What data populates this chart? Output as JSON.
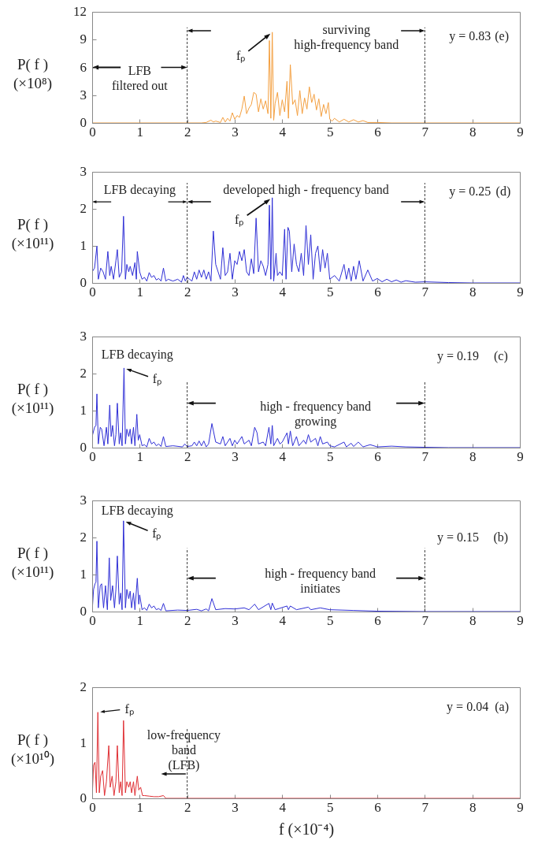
{
  "chart_data": [
    {
      "type": "line",
      "ylabel": "P( f )\n(×10⁸)",
      "xlim": [
        0,
        9
      ],
      "xticks": [
        0,
        1,
        2,
        3,
        4,
        5,
        6,
        7,
        8,
        9
      ],
      "ylim": [
        0,
        12
      ],
      "yticks": [
        0,
        3,
        6,
        9,
        12
      ],
      "series": [
        {
          "color": "#f4a041",
          "x": [
            0,
            2.3,
            2.4,
            2.5,
            2.55,
            2.6,
            2.7,
            2.75,
            2.8,
            2.85,
            2.9,
            2.95,
            3.0,
            3.05,
            3.1,
            3.15,
            3.2,
            3.25,
            3.3,
            3.35,
            3.4,
            3.45,
            3.5,
            3.55,
            3.6,
            3.65,
            3.7,
            3.73,
            3.76,
            3.79,
            3.82,
            3.85,
            3.9,
            3.95,
            4.0,
            4.05,
            4.1,
            4.13,
            4.17,
            4.22,
            4.27,
            4.32,
            4.37,
            4.42,
            4.47,
            4.52,
            4.57,
            4.62,
            4.67,
            4.72,
            4.77,
            4.82,
            4.87,
            4.92,
            4.97,
            5.0,
            5.05,
            5.1,
            5.2,
            5.3,
            5.4,
            5.5,
            5.6,
            5.7,
            5.8,
            6.0,
            6.3,
            9
          ],
          "values": [
            0,
            0,
            0.05,
            0.3,
            0.1,
            0.2,
            0.05,
            0.6,
            0.1,
            0.5,
            0.2,
            1.1,
            0.4,
            0.8,
            0.6,
            1.5,
            2.9,
            1.0,
            1.6,
            2.0,
            3.3,
            3.1,
            1.2,
            2.6,
            1.5,
            2.4,
            1.0,
            8.9,
            0.5,
            9.8,
            0.3,
            2.1,
            3.3,
            0.8,
            2.5,
            1.2,
            4.5,
            0.5,
            6.3,
            2.0,
            2.5,
            0.8,
            3.5,
            1.0,
            2.7,
            1.5,
            3.9,
            2.2,
            3.1,
            1.4,
            2.6,
            0.7,
            2.0,
            1.0,
            2.2,
            0.4,
            0.2,
            0.5,
            0.1,
            0.4,
            0.1,
            0.35,
            0.1,
            0.25,
            0.05,
            0.05,
            0,
            0
          ]
        }
      ],
      "ref_lines": [
        {
          "axis": "x",
          "value": 2,
          "line_style": "dashed"
        },
        {
          "axis": "x",
          "value": 7,
          "line_style": "dashed"
        }
      ],
      "annotations": [
        "LFB\nfiltered out",
        "surviving\nhigh-frequency band",
        {
          "text": "fₚ",
          "x": 3.79,
          "y": 9.8
        },
        "y = 0.83",
        "(e)"
      ]
    },
    {
      "type": "line",
      "ylabel": "P( f )\n(×10¹¹)",
      "xlim": [
        0,
        9
      ],
      "xticks": [
        0,
        1,
        2,
        3,
        4,
        5,
        6,
        7,
        8,
        9
      ],
      "ylim": [
        0,
        3
      ],
      "yticks": [
        0,
        1,
        2,
        3
      ],
      "series": [
        {
          "color": "#2f2fd6",
          "x": [
            0,
            0.05,
            0.1,
            0.13,
            0.18,
            0.23,
            0.28,
            0.33,
            0.37,
            0.4,
            0.45,
            0.5,
            0.53,
            0.57,
            0.62,
            0.66,
            0.7,
            0.73,
            0.77,
            0.8,
            0.85,
            0.9,
            0.93,
            0.95,
            1.0,
            1.05,
            1.1,
            1.15,
            1.2,
            1.25,
            1.3,
            1.35,
            1.4,
            1.45,
            1.5,
            1.55,
            1.6,
            1.7,
            1.8,
            1.88,
            1.92,
            1.96,
            2.0,
            2.05,
            2.1,
            2.15,
            2.2,
            2.25,
            2.3,
            2.35,
            2.4,
            2.45,
            2.5,
            2.55,
            2.6,
            2.65,
            2.7,
            2.75,
            2.8,
            2.85,
            2.9,
            2.95,
            3.0,
            3.05,
            3.1,
            3.15,
            3.2,
            3.25,
            3.3,
            3.35,
            3.4,
            3.45,
            3.5,
            3.55,
            3.6,
            3.65,
            3.7,
            3.73,
            3.76,
            3.79,
            3.82,
            3.87,
            3.9,
            3.95,
            4.0,
            4.05,
            4.08,
            4.12,
            4.15,
            4.2,
            4.25,
            4.3,
            4.35,
            4.4,
            4.45,
            4.5,
            4.55,
            4.6,
            4.65,
            4.7,
            4.75,
            4.8,
            4.85,
            4.9,
            4.95,
            5.0,
            5.1,
            5.2,
            5.3,
            5.35,
            5.4,
            5.45,
            5.5,
            5.55,
            5.62,
            5.7,
            5.8,
            5.9,
            6.0,
            6.1,
            6.2,
            6.3,
            6.4,
            6.5,
            6.6,
            6.8,
            7.0,
            7.5,
            8,
            9
          ],
          "values": [
            0.3,
            0.4,
            1.0,
            0.1,
            0.4,
            0.3,
            0.1,
            0.85,
            0.2,
            0.45,
            0.1,
            0.6,
            0.9,
            0.15,
            0.3,
            1.8,
            0.1,
            0.5,
            0.3,
            0.45,
            0.2,
            0.55,
            0.1,
            0.85,
            0.3,
            0.1,
            0.15,
            0.05,
            0.28,
            0.15,
            0.2,
            0.08,
            0.12,
            0.05,
            0.4,
            0.05,
            0.1,
            0.05,
            0.1,
            0.02,
            0.2,
            0.05,
            0.15,
            0.1,
            0.05,
            0.3,
            0.1,
            0.35,
            0.15,
            0.35,
            0.1,
            0.3,
            0.05,
            1.4,
            0.5,
            0.3,
            0.1,
            0.95,
            0.2,
            0.3,
            0.8,
            0.1,
            0.6,
            0.5,
            0.85,
            0.6,
            0.9,
            0.3,
            0.2,
            0.65,
            0.25,
            1.75,
            0.3,
            0.6,
            0.45,
            0.2,
            0.5,
            2.1,
            0.1,
            2.3,
            0.05,
            0.8,
            0.2,
            0.3,
            0.2,
            1.45,
            0.1,
            1.5,
            1.4,
            0.3,
            1.05,
            0.5,
            0.3,
            0.8,
            0.2,
            1.55,
            0.5,
            1.3,
            0.1,
            0.8,
            1.0,
            0.3,
            0.9,
            0.4,
            0.8,
            0.1,
            0.2,
            0.05,
            0.5,
            0.1,
            0.4,
            0.05,
            0.45,
            0.1,
            0.6,
            0.05,
            0.35,
            0.05,
            0.12,
            0.03,
            0.1,
            0.03,
            0.08,
            0.02,
            0.06,
            0.02,
            0.03,
            0.01,
            0,
            0
          ]
        }
      ],
      "ref_lines": [
        {
          "axis": "x",
          "value": 2,
          "line_style": "dashed"
        },
        {
          "axis": "x",
          "value": 7,
          "line_style": "dashed"
        }
      ],
      "annotations": [
        "LFB decaying",
        "developed high - frequency band",
        {
          "text": "fₚ",
          "x": 3.79,
          "y": 2.3
        },
        "y = 0.25",
        "(d)"
      ]
    },
    {
      "type": "line",
      "ylabel": "P( f )\n(×10¹¹)",
      "xlim": [
        0,
        9
      ],
      "xticks": [
        0,
        1,
        2,
        3,
        4,
        5,
        6,
        7,
        8,
        9
      ],
      "ylim": [
        0,
        3
      ],
      "yticks": [
        0,
        1,
        2,
        3
      ],
      "series": [
        {
          "color": "#2f2fd6",
          "x": [
            0,
            0.05,
            0.08,
            0.1,
            0.13,
            0.17,
            0.2,
            0.25,
            0.3,
            0.33,
            0.37,
            0.4,
            0.43,
            0.47,
            0.5,
            0.53,
            0.57,
            0.6,
            0.63,
            0.67,
            0.7,
            0.73,
            0.77,
            0.8,
            0.83,
            0.87,
            0.9,
            0.94,
            0.97,
            1.0,
            1.05,
            1.1,
            1.15,
            1.2,
            1.25,
            1.3,
            1.35,
            1.4,
            1.45,
            1.5,
            1.55,
            1.7,
            1.9,
            1.95,
            2.0,
            2.1,
            2.15,
            2.2,
            2.25,
            2.3,
            2.35,
            2.4,
            2.45,
            2.52,
            2.6,
            2.7,
            2.75,
            2.8,
            2.9,
            2.95,
            3.0,
            3.05,
            3.1,
            3.15,
            3.2,
            3.3,
            3.35,
            3.42,
            3.47,
            3.5,
            3.6,
            3.65,
            3.72,
            3.76,
            3.79,
            3.82,
            3.9,
            3.95,
            4.0,
            4.1,
            4.13,
            4.17,
            4.22,
            4.3,
            4.35,
            4.45,
            4.5,
            4.55,
            4.6,
            4.7,
            4.75,
            4.8,
            4.85,
            4.95,
            5.0,
            5.1,
            5.3,
            5.35,
            5.45,
            5.5,
            5.6,
            5.7,
            5.85,
            6.0,
            6.3,
            6.6,
            7,
            7.5,
            9
          ],
          "values": [
            0.3,
            0.55,
            0.6,
            1.45,
            0.1,
            0.55,
            0.5,
            0.05,
            0.55,
            0.1,
            1.15,
            0.3,
            0.6,
            0.05,
            0.35,
            1.2,
            0.1,
            0.4,
            0.05,
            2.15,
            0.1,
            0.5,
            0.3,
            0.5,
            0.1,
            0.55,
            0.05,
            0.9,
            0.2,
            0.35,
            0.05,
            0.08,
            0.02,
            0.25,
            0.1,
            0.15,
            0.05,
            0.1,
            0.03,
            0.3,
            0.03,
            0.05,
            0.02,
            0.1,
            0.03,
            0.05,
            0.15,
            0.05,
            0.18,
            0.05,
            0.18,
            0.02,
            0.1,
            0.65,
            0.15,
            0.1,
            0.3,
            0.05,
            0.25,
            0.05,
            0.2,
            0.1,
            0.2,
            0.3,
            0.1,
            0.2,
            0.05,
            0.55,
            0.4,
            0.1,
            0.15,
            0.05,
            0.55,
            0.1,
            0.6,
            0.05,
            0.25,
            0.1,
            0.15,
            0.4,
            0.1,
            0.45,
            0.05,
            0.3,
            0.05,
            0.2,
            0.1,
            0.35,
            0.15,
            0.25,
            0.05,
            0.3,
            0.1,
            0.15,
            0.05,
            0.02,
            0.15,
            0.02,
            0.12,
            0.03,
            0.15,
            0.02,
            0.08,
            0.02,
            0.04,
            0.02,
            0.01,
            0,
            0
          ]
        }
      ],
      "ref_lines": [
        {
          "axis": "x",
          "value": 2,
          "line_style": "dashed"
        },
        {
          "axis": "x",
          "value": 7,
          "line_style": "dashed"
        }
      ],
      "annotations": [
        "LFB decaying",
        "high - frequency band\ngrowing",
        {
          "text": "fₚ",
          "x": 0.67,
          "y": 2.15
        },
        "y = 0.19",
        "(c)"
      ]
    },
    {
      "type": "line",
      "ylabel": "P( f )\n(×10¹¹)",
      "xlim": [
        0,
        9
      ],
      "xticks": [
        0,
        1,
        2,
        3,
        4,
        5,
        6,
        7,
        8,
        9
      ],
      "ylim": [
        0,
        3
      ],
      "yticks": [
        0,
        1,
        2,
        3
      ],
      "series": [
        {
          "color": "#2f2fd6",
          "x": [
            0,
            0.03,
            0.06,
            0.08,
            0.1,
            0.13,
            0.17,
            0.2,
            0.24,
            0.28,
            0.32,
            0.36,
            0.39,
            0.43,
            0.47,
            0.5,
            0.53,
            0.57,
            0.6,
            0.63,
            0.66,
            0.7,
            0.73,
            0.77,
            0.8,
            0.83,
            0.87,
            0.9,
            0.95,
            0.98,
            1.0,
            1.05,
            1.1,
            1.15,
            1.2,
            1.25,
            1.3,
            1.35,
            1.4,
            1.45,
            1.5,
            1.55,
            1.8,
            2.0,
            2.2,
            2.3,
            2.4,
            2.45,
            2.52,
            2.6,
            2.8,
            3.0,
            3.2,
            3.3,
            3.42,
            3.5,
            3.72,
            3.76,
            3.79,
            3.85,
            4.1,
            4.13,
            4.17,
            4.3,
            4.55,
            4.6,
            4.8,
            5.0,
            5.5,
            6,
            7,
            9
          ],
          "values": [
            0,
            0.6,
            0.75,
            0.8,
            1.9,
            0.1,
            0.7,
            0.75,
            0.1,
            0.7,
            0.05,
            1.45,
            0.3,
            0.7,
            0.1,
            0.6,
            1.5,
            0.2,
            0.5,
            0.05,
            2.45,
            0.1,
            0.6,
            0.35,
            0.55,
            0.1,
            0.5,
            0.05,
            0.9,
            0.2,
            0.45,
            0.05,
            0.1,
            0.03,
            0.2,
            0.1,
            0.15,
            0.05,
            0.08,
            0.03,
            0.22,
            0.02,
            0.04,
            0.03,
            0.06,
            0.02,
            0.07,
            0.02,
            0.35,
            0.05,
            0.08,
            0.07,
            0.1,
            0.05,
            0.2,
            0.05,
            0.22,
            0.05,
            0.23,
            0.05,
            0.15,
            0.05,
            0.15,
            0.05,
            0.12,
            0.05,
            0.1,
            0.05,
            0.03,
            0.01,
            0,
            0
          ]
        }
      ],
      "ref_lines": [
        {
          "axis": "x",
          "value": 2,
          "line_style": "dashed"
        },
        {
          "axis": "x",
          "value": 7,
          "line_style": "dashed"
        }
      ],
      "annotations": [
        "LFB decaying",
        "high - frequency band\ninitiates",
        {
          "text": "fₚ",
          "x": 0.66,
          "y": 2.45
        },
        "y = 0.15",
        "(b)"
      ]
    },
    {
      "type": "line",
      "ylabel": "P( f )\n(×10¹⁰)",
      "xlabel": "f (×10⁻⁴)",
      "xlim": [
        0,
        9
      ],
      "xticks": [
        0,
        1,
        2,
        3,
        4,
        5,
        6,
        7,
        8,
        9
      ],
      "ylim": [
        0,
        2
      ],
      "yticks": [
        0,
        1,
        2
      ],
      "series": [
        {
          "color": "#e02f34",
          "x": [
            0,
            0.03,
            0.06,
            0.09,
            0.12,
            0.15,
            0.18,
            0.22,
            0.26,
            0.3,
            0.35,
            0.38,
            0.42,
            0.46,
            0.5,
            0.53,
            0.57,
            0.6,
            0.63,
            0.66,
            0.7,
            0.73,
            0.77,
            0.8,
            0.83,
            0.87,
            0.9,
            0.95,
            0.98,
            1.02,
            1.06,
            1.1,
            1.2,
            1.3,
            1.4,
            1.5,
            1.55,
            2,
            9
          ],
          "values": [
            0,
            0.6,
            0.65,
            0.1,
            1.55,
            0.1,
            0.4,
            0.5,
            0.05,
            0.3,
            0.95,
            0.2,
            0.4,
            0.05,
            0.3,
            0.95,
            0.1,
            0.3,
            0.05,
            1.4,
            0.1,
            0.3,
            0.2,
            0.3,
            0.1,
            0.3,
            0.05,
            0.4,
            0.15,
            0.2,
            0.05,
            0.05,
            0.04,
            0.03,
            0.03,
            0.05,
            0,
            0,
            0
          ]
        }
      ],
      "ref_lines": [
        {
          "axis": "x",
          "value": 2,
          "line_style": "dashed"
        }
      ],
      "annotations": [
        {
          "text": "fₚ",
          "x": 0.12,
          "y": 1.55
        },
        "low-frequency\nband\n(LFB)",
        "y = 0.04",
        "(a)"
      ]
    }
  ]
}
